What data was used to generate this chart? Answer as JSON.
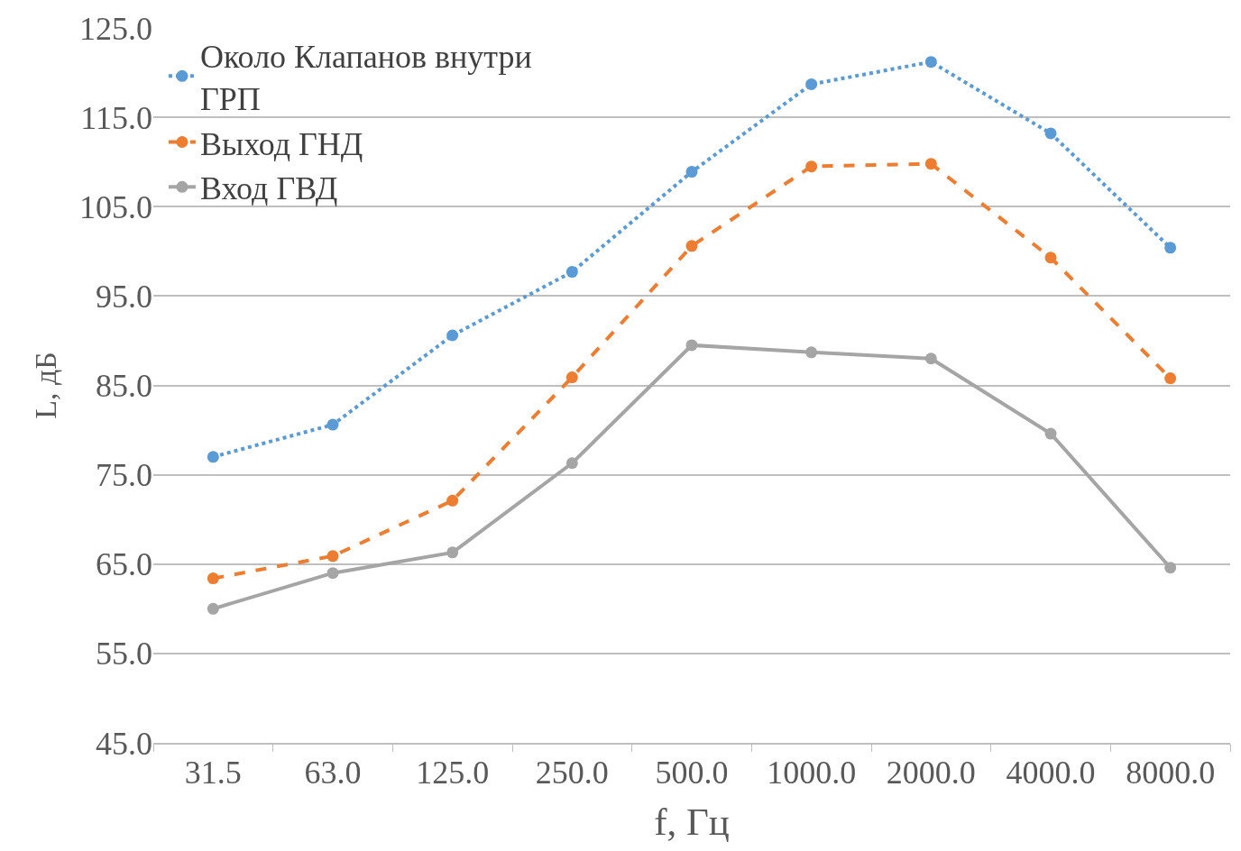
{
  "chart_data": {
    "type": "line",
    "xlabel": "f, Гц",
    "ylabel": "L, дБ",
    "categories": [
      "31.5",
      "63.0",
      "125.0",
      "250.0",
      "500.0",
      "1000.0",
      "2000.0",
      "4000.0",
      "8000.0"
    ],
    "series": [
      {
        "name": "Около Клапанов внутри ГРП",
        "color": "#5b9bd5",
        "line_style": "dotted",
        "values": [
          77.0,
          80.6,
          90.6,
          97.7,
          108.9,
          118.7,
          121.2,
          113.2,
          100.4
        ]
      },
      {
        "name": "Выход ГНД",
        "color": "#ed7d31",
        "line_style": "dashed",
        "values": [
          63.4,
          65.9,
          72.1,
          85.9,
          100.6,
          109.5,
          109.8,
          99.3,
          85.8
        ]
      },
      {
        "name": "Вход ГВД",
        "color": "#a5a5a5",
        "line_style": "solid",
        "values": [
          60.0,
          64.0,
          66.3,
          76.3,
          89.5,
          88.7,
          88.0,
          79.6,
          64.6
        ]
      }
    ],
    "ylim": [
      45,
      125
    ],
    "yticks": [
      {
        "value": 45,
        "label": "45.0"
      },
      {
        "value": 55,
        "label": "55.0"
      },
      {
        "value": 65,
        "label": "65.0"
      },
      {
        "value": 75,
        "label": "75.0"
      },
      {
        "value": 85,
        "label": "85.0"
      },
      {
        "value": 95,
        "label": "95.0"
      },
      {
        "value": 105,
        "label": "105.0"
      },
      {
        "value": 115,
        "label": "115.0"
      },
      {
        "value": 125,
        "label": "125.0"
      }
    ],
    "grid": "y",
    "legend": "top left",
    "marker": "circle"
  }
}
